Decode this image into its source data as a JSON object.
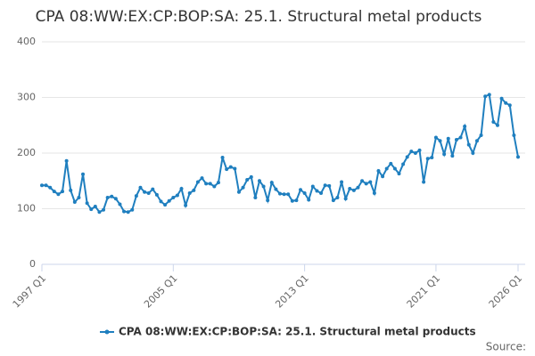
{
  "chart_data": {
    "type": "line",
    "title": "CPA 08:WW:EX:CP:BOP:SA: 25.1. Structural metal products",
    "source": "Source:",
    "categories": [
      "1997 Q1",
      null,
      null,
      null,
      null,
      null,
      null,
      null,
      null,
      null,
      null,
      null,
      null,
      null,
      null,
      null,
      null,
      null,
      null,
      null,
      null,
      null,
      null,
      null,
      null,
      null,
      null,
      null,
      null,
      null,
      null,
      null,
      "2005 Q1",
      null,
      null,
      null,
      null,
      null,
      null,
      null,
      null,
      null,
      null,
      null,
      null,
      null,
      null,
      null,
      null,
      null,
      null,
      null,
      null,
      null,
      null,
      null,
      null,
      null,
      null,
      null,
      null,
      null,
      null,
      null,
      "2013 Q1",
      null,
      null,
      null,
      null,
      null,
      null,
      null,
      null,
      null,
      null,
      null,
      null,
      null,
      null,
      null,
      null,
      null,
      null,
      null,
      null,
      null,
      null,
      null,
      null,
      null,
      null,
      null,
      null,
      null,
      null,
      null,
      "2021 Q1",
      null,
      null,
      null,
      null,
      null,
      null,
      null,
      null,
      null,
      null,
      null,
      null,
      null,
      null,
      null,
      null,
      null,
      null,
      null,
      "2026 Q1"
    ],
    "series": [
      {
        "name": "CPA 08:WW:EX:CP:BOP:SA: 25.1. Structural metal products",
        "color": "#1f7fbf",
        "values": [
          142,
          142,
          138,
          131,
          126,
          131,
          186,
          133,
          112,
          120,
          162,
          110,
          99,
          104,
          94,
          98,
          120,
          122,
          118,
          108,
          95,
          94,
          98,
          123,
          138,
          130,
          128,
          135,
          125,
          113,
          107,
          114,
          120,
          124,
          136,
          106,
          128,
          133,
          148,
          155,
          145,
          145,
          140,
          147,
          192,
          171,
          175,
          172,
          130,
          138,
          152,
          157,
          120,
          150,
          140,
          115,
          147,
          135,
          127,
          126,
          126,
          114,
          115,
          134,
          128,
          116,
          140,
          132,
          128,
          142,
          141,
          115,
          120,
          148,
          118,
          136,
          133,
          138,
          150,
          145,
          148,
          128,
          168,
          158,
          172,
          181,
          172,
          163,
          180,
          193,
          203,
          200,
          205,
          148,
          190,
          192,
          228,
          222,
          198,
          226,
          195,
          224,
          228,
          248,
          215,
          200,
          222,
          232,
          302,
          305,
          256,
          250,
          298,
          290,
          286,
          232,
          193
        ]
      }
    ],
    "ylim": [
      0,
      400
    ],
    "yticks": [
      0,
      100,
      200,
      300,
      400
    ],
    "grid": true
  }
}
